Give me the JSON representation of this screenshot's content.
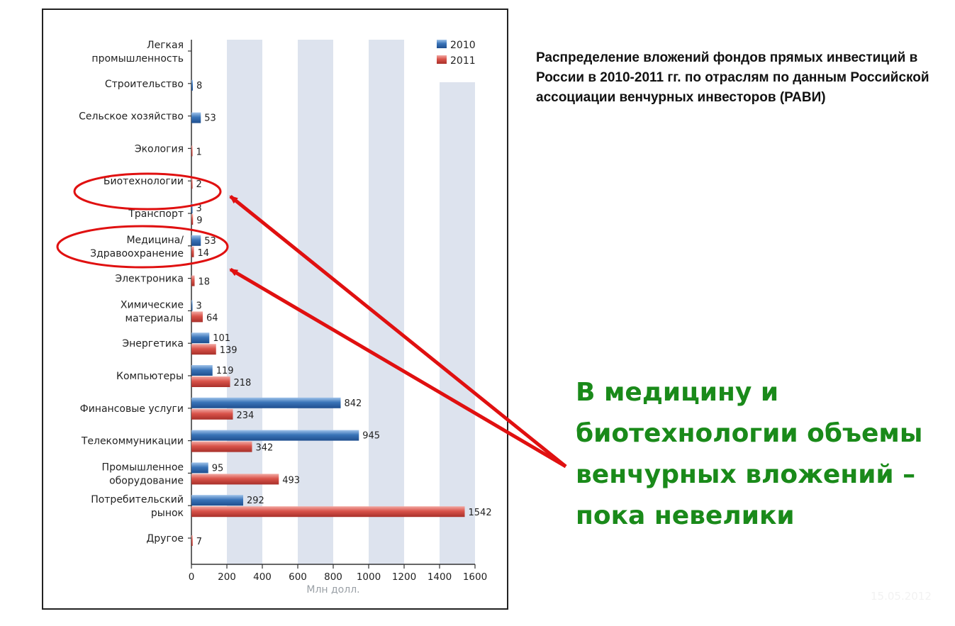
{
  "caption": "Распределение вложений фондов прямых инвестиций в России в 2010-2011 гг. по отраслям по данным Российской ассоциации венчурных инвесторов (РАВИ)",
  "conclusion": "В медицину и биотехнологии объемы венчурных вложений – пока невелики",
  "watermark": "15.05.2012",
  "colors": {
    "series_2010": "#3a74b8",
    "series_2011": "#d9534a",
    "gridband": "#dde3ee",
    "axis": "#333333",
    "annotation": "#e01010",
    "conclusion": "#1a8a1a"
  },
  "chart_data": {
    "type": "bar",
    "orientation": "horizontal",
    "xlabel": "Млн долл.",
    "ylabel": "",
    "xlim": [
      0,
      1600
    ],
    "xticks": [
      0,
      200,
      400,
      600,
      800,
      1000,
      1200,
      1400,
      1600
    ],
    "grid": "alternating vertical bands",
    "legend_position": "top-right",
    "categories": [
      [
        "Легкая",
        "промышленность"
      ],
      [
        "Строительство"
      ],
      [
        "Сельское хозяйство"
      ],
      [
        "Экология"
      ],
      [
        "Биотехнологии"
      ],
      [
        "Транспорт"
      ],
      [
        "Медицина/",
        "Здравоохранение"
      ],
      [
        "Электроника"
      ],
      [
        "Химические",
        "материалы"
      ],
      [
        "Энергетика"
      ],
      [
        "Компьютеры"
      ],
      [
        "Финансовые услуги"
      ],
      [
        "Телекоммуникации"
      ],
      [
        "Промышленное",
        "оборудование"
      ],
      [
        "Потребительский",
        "рынок"
      ],
      [
        "Другое"
      ]
    ],
    "series": [
      {
        "name": "2010",
        "values": [
          null,
          8,
          53,
          null,
          null,
          3,
          53,
          null,
          3,
          101,
          119,
          842,
          945,
          95,
          292,
          null
        ]
      },
      {
        "name": "2011",
        "values": [
          null,
          null,
          null,
          1,
          2,
          9,
          14,
          18,
          64,
          139,
          218,
          234,
          342,
          493,
          1542,
          7
        ]
      }
    ],
    "highlighted_categories": [
      "Биотехнологии",
      "Медицина/Здравоохранение"
    ]
  }
}
